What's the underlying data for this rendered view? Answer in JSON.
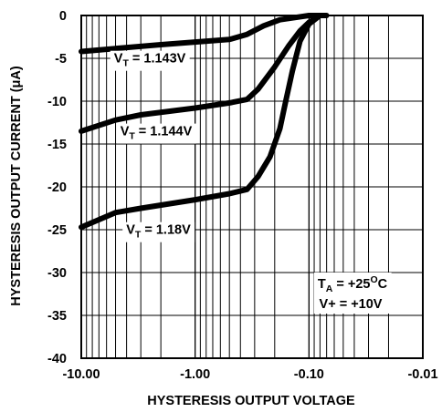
{
  "chart_data": {
    "type": "line",
    "title": "",
    "xlabel": "HYSTERESIS OUTPUT VOLTAGE",
    "ylabel": "HYSTERESIS OUTPUT CURRENT (μA)",
    "x_scale": "log-reversed",
    "xlim": [
      -10.0,
      -0.01
    ],
    "ylim": [
      -40,
      0
    ],
    "grid": true,
    "x_ticks": [
      {
        "value": -10.0,
        "label": "-10.00"
      },
      {
        "value": -1.0,
        "label": "-1.00"
      },
      {
        "value": -0.1,
        "label": "-0.10"
      },
      {
        "value": -0.01,
        "label": "-0.01"
      }
    ],
    "y_ticks": [
      {
        "value": 0,
        "label": "0"
      },
      {
        "value": -5,
        "label": "-5"
      },
      {
        "value": -10,
        "label": "-10"
      },
      {
        "value": -15,
        "label": "-15"
      },
      {
        "value": -20,
        "label": "-20"
      },
      {
        "value": -25,
        "label": "-25"
      },
      {
        "value": -30,
        "label": "-30"
      },
      {
        "value": -35,
        "label": "-35"
      },
      {
        "value": -40,
        "label": "-40"
      }
    ],
    "series": [
      {
        "name": "VT = 1.143V",
        "label_main": "V",
        "label_sub": "T",
        "label_rest": " = 1.143V",
        "label_at": {
          "x": -2.5,
          "y": -5.5
        },
        "points": [
          [
            -10.0,
            -4.2
          ],
          [
            -5.0,
            -3.85
          ],
          [
            -2.0,
            -3.4
          ],
          [
            -1.0,
            -3.1
          ],
          [
            -0.5,
            -2.8
          ],
          [
            -0.35,
            -2.2
          ],
          [
            -0.25,
            -1.2
          ],
          [
            -0.18,
            -0.5
          ],
          [
            -0.1,
            0.0
          ],
          [
            -0.07,
            0.0
          ]
        ]
      },
      {
        "name": "VT = 1.144V",
        "label_main": "V",
        "label_sub": "T",
        "label_rest": " = 1.144V",
        "label_at": {
          "x": -2.2,
          "y": -14.0
        },
        "points": [
          [
            -10.0,
            -13.5
          ],
          [
            -5.0,
            -12.2
          ],
          [
            -3.0,
            -11.6
          ],
          [
            -1.0,
            -10.8
          ],
          [
            -0.5,
            -10.2
          ],
          [
            -0.35,
            -9.8
          ],
          [
            -0.28,
            -8.6
          ],
          [
            -0.2,
            -6.0
          ],
          [
            -0.15,
            -3.5
          ],
          [
            -0.12,
            -1.8
          ],
          [
            -0.1,
            -0.8
          ],
          [
            -0.08,
            0.0
          ]
        ]
      },
      {
        "name": "VT = 1.18V",
        "label_main": "V",
        "label_sub": "T",
        "label_rest": " = 1.18V",
        "label_at": {
          "x": -2.1,
          "y": -25.5
        },
        "points": [
          [
            -10.0,
            -24.7
          ],
          [
            -5.0,
            -23.0
          ],
          [
            -3.0,
            -22.5
          ],
          [
            -1.0,
            -21.5
          ],
          [
            -0.5,
            -20.8
          ],
          [
            -0.35,
            -20.3
          ],
          [
            -0.28,
            -18.8
          ],
          [
            -0.22,
            -16.5
          ],
          [
            -0.18,
            -13.2
          ],
          [
            -0.16,
            -10.0
          ],
          [
            -0.14,
            -6.5
          ],
          [
            -0.12,
            -3.0
          ],
          [
            -0.1,
            -1.0
          ],
          [
            -0.08,
            0.0
          ]
        ]
      }
    ],
    "annotations": [
      {
        "main": "T",
        "sub": "A",
        "rest_main": " = +25",
        "sup": "O",
        "tail": "C"
      },
      {
        "text": "V+ = +10V"
      }
    ]
  }
}
